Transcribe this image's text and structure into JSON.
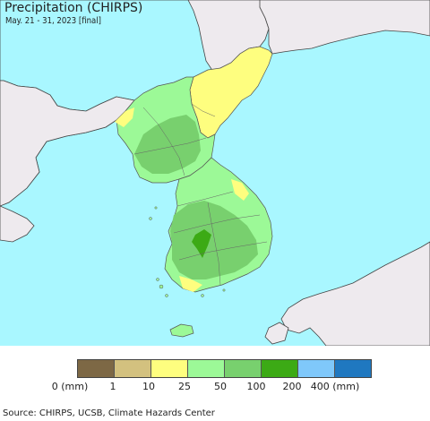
{
  "header": {
    "title": "Precipitation (CHIRPS)",
    "subtitle": "May. 21 - 31, 2023 [final]"
  },
  "colors": {
    "ocean": "#a9f7ff",
    "outside_land": "#eeeaee",
    "border": "#555555"
  },
  "legend": {
    "swatches": [
      {
        "color": "#7d6845"
      },
      {
        "color": "#d3c17f"
      },
      {
        "color": "#fefe7f"
      },
      {
        "color": "#9cf997"
      },
      {
        "color": "#78d06e"
      },
      {
        "color": "#3caa15"
      },
      {
        "color": "#7fc8fa"
      },
      {
        "color": "#1f78c0"
      }
    ],
    "labels": [
      "0 (mm)",
      "1",
      "10",
      "25",
      "50",
      "100",
      "200",
      "400 (mm)"
    ]
  },
  "footer": {
    "source": "Source: CHIRPS, UCSB, Climate Hazards Center"
  }
}
